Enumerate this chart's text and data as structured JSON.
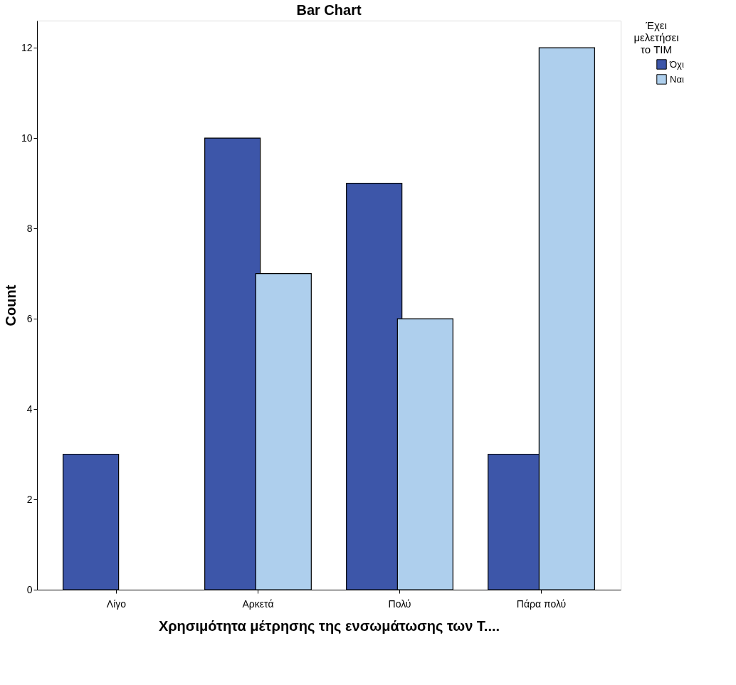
{
  "chart_data": {
    "type": "bar",
    "title": "Bar Chart",
    "xlabel": "Χρησιμότητα μέτρησης της ενσωμάτωσης των Τ....",
    "ylabel": "Count",
    "legend_title": "Έχει μελετήσει το TIM",
    "categories": [
      "Λίγο",
      "Αρκετά",
      "Πολύ",
      "Πάρα πολύ"
    ],
    "series": [
      {
        "name": "Όχι",
        "color": "#3d56a9",
        "values": [
          3,
          10,
          9,
          3
        ]
      },
      {
        "name": "Ναι",
        "color": "#aecfed",
        "values": [
          null,
          7,
          6,
          12
        ]
      }
    ],
    "ylim": [
      0,
      12.6
    ],
    "yticks": [
      0,
      2,
      4,
      6,
      8,
      10,
      12
    ],
    "grid": false,
    "legend": "top right"
  }
}
